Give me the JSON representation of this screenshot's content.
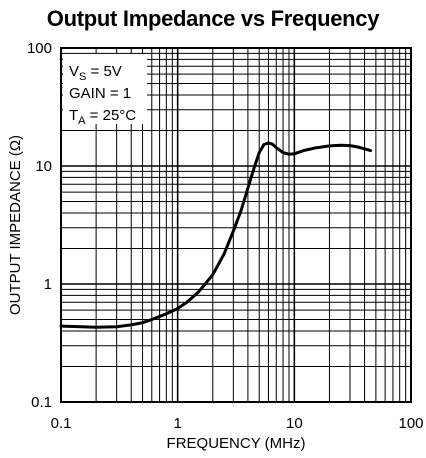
{
  "chart_data": {
    "type": "line",
    "title": "Output Impedance vs Frequency",
    "xlabel": "FREQUENCY (MHz)",
    "ylabel": "OUTPUT IMPEDANCE (Ω)",
    "x_scale": "log",
    "y_scale": "log",
    "xlim": [
      0.1,
      100
    ],
    "ylim": [
      0.1,
      100
    ],
    "grid": true,
    "x_ticks": [
      "0.1",
      "1",
      "10",
      "100"
    ],
    "y_ticks": [
      "0.1",
      "1",
      "10",
      "100"
    ],
    "annotations": [
      {
        "main": "V",
        "sub": "S",
        "rest": " = 5V"
      },
      {
        "main": "GAIN = 1",
        "sub": "",
        "rest": ""
      },
      {
        "main": "T",
        "sub": "A",
        "rest": " = 25°C"
      }
    ],
    "series": [
      {
        "x": [
          0.1,
          0.15,
          0.2,
          0.3,
          0.4,
          0.5,
          0.6,
          0.7,
          0.8,
          1.0,
          1.2,
          1.5,
          2.0,
          2.5,
          3.0,
          3.5,
          4.0,
          4.5,
          5.0,
          5.5,
          6.0,
          6.5,
          7.0,
          8.0,
          9.0,
          10,
          12,
          15,
          20,
          25,
          30,
          35,
          40,
          45
        ],
        "y": [
          0.44,
          0.435,
          0.43,
          0.435,
          0.45,
          0.47,
          0.5,
          0.53,
          0.56,
          0.62,
          0.7,
          0.85,
          1.2,
          1.8,
          2.8,
          4.2,
          6.5,
          9.5,
          13.0,
          15.2,
          15.7,
          15.3,
          14.3,
          13.0,
          12.6,
          12.7,
          13.5,
          14.2,
          14.8,
          15.0,
          14.9,
          14.5,
          14.0,
          13.5
        ]
      }
    ]
  }
}
